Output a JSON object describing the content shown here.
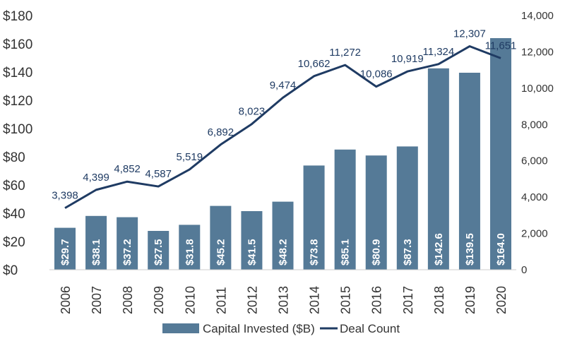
{
  "chart_data": {
    "type": "bar",
    "categories": [
      "2006",
      "2007",
      "2008",
      "2009",
      "2010",
      "2011",
      "2012",
      "2013",
      "2014",
      "2015",
      "2016",
      "2017",
      "2018",
      "2019",
      "2020"
    ],
    "series": [
      {
        "name": "Capital Invested ($B)",
        "type": "bar",
        "axis": "left",
        "color": "#557a97",
        "values": [
          29.7,
          38.1,
          37.2,
          27.5,
          31.8,
          45.2,
          41.5,
          48.2,
          73.8,
          85.1,
          80.9,
          87.3,
          142.6,
          139.5,
          164.0
        ],
        "labels": [
          "$29.7",
          "$38.1",
          "$37.2",
          "$27.5",
          "$31.8",
          "$45.2",
          "$41.5",
          "$48.2",
          "$73.8",
          "$85.1",
          "$80.9",
          "$87.3",
          "$142.6",
          "$139.5",
          "$164.0"
        ]
      },
      {
        "name": "Deal Count",
        "type": "line",
        "axis": "right",
        "color": "#1f3b63",
        "values": [
          3398,
          4399,
          4852,
          4587,
          5519,
          6892,
          8023,
          9474,
          10662,
          11272,
          10086,
          10919,
          11324,
          12307,
          11651
        ],
        "labels": [
          "3,398",
          "4,399",
          "4,852",
          "4,587",
          "5,519",
          "6,892",
          "8,023",
          "9,474",
          "10,662",
          "11,272",
          "10,086",
          "10,919",
          "11,324",
          "12,307",
          "11,651"
        ]
      }
    ],
    "y_left": {
      "range": [
        0,
        180
      ],
      "ticks": [
        0,
        20,
        40,
        60,
        80,
        100,
        120,
        140,
        160,
        180
      ],
      "tick_labels": [
        "$0",
        "$20",
        "$40",
        "$60",
        "$80",
        "$100",
        "$120",
        "$140",
        "$160",
        "$180"
      ]
    },
    "y_right": {
      "range": [
        0,
        14000
      ],
      "ticks": [
        0,
        2000,
        4000,
        6000,
        8000,
        10000,
        12000,
        14000
      ],
      "tick_labels": [
        "0",
        "2,000",
        "4,000",
        "6,000",
        "8,000",
        "10,000",
        "12,000",
        "14,000"
      ]
    },
    "grid": false,
    "legend_position": "bottom-center",
    "title": "",
    "xlabel": "",
    "ylabel": ""
  }
}
